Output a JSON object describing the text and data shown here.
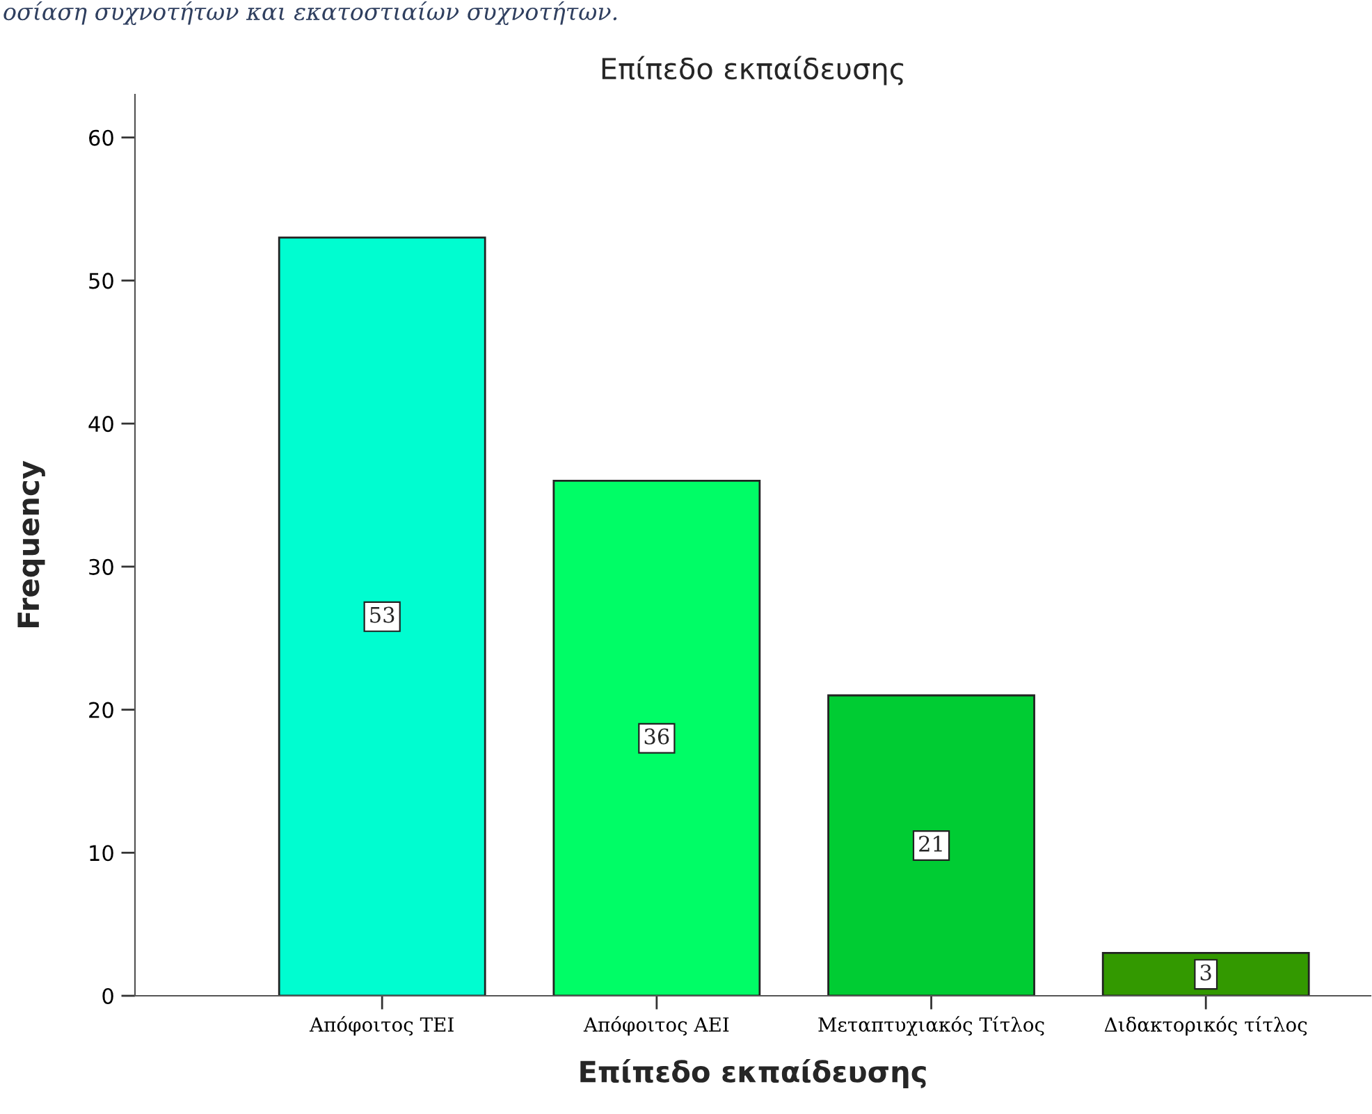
{
  "chart_data": {
    "type": "bar",
    "title": "Επίπεδο εκπαίδευσης",
    "xlabel": "Επίπεδο εκπαίδευσης",
    "ylabel": "Frequency",
    "annotations": [
      "οσίαση συχνοτήτων και εκατοστιαίων συχνοτήτων."
    ],
    "categories": [
      "Απόφοιτος ΤΕΙ",
      "Απόφοιτος ΑΕΙ",
      "Μεταπτυχιακός Τίτλος",
      "Διδακτορικός τίτλος"
    ],
    "values": [
      53,
      36,
      21,
      3
    ],
    "colors": [
      "#00fdd0",
      "#00fd66",
      "#00cc33",
      "#339900"
    ],
    "ylim": [
      0,
      63
    ],
    "yticks": [
      0,
      10,
      20,
      30,
      40,
      50,
      60
    ],
    "grid": false,
    "data_labels": true
  }
}
